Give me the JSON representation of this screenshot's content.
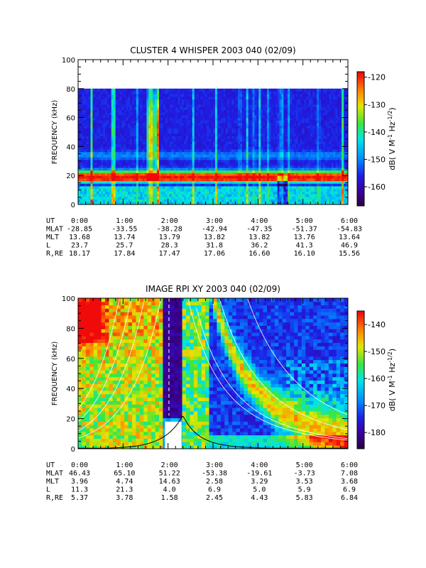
{
  "chart_data": [
    {
      "type": "heatmap",
      "title": "CLUSTER 4 WHISPER 2003 040 (02/09)",
      "ylabel": "FREQUENCY (kHz)",
      "x_ticks": [
        "0:00",
        "1:00",
        "2:00",
        "3:00",
        "4:00",
        "5:00",
        "6:00"
      ],
      "y_ticks": [
        "0",
        "20",
        "40",
        "60",
        "80",
        "100"
      ],
      "xlim_hours": [
        0,
        6
      ],
      "ylim_khz": [
        0,
        100
      ],
      "data_fmax_khz": 80,
      "colorbar": {
        "label": "dB( V M",
        "ticks": [
          "-160",
          "-150",
          "-140",
          "-130",
          "-120"
        ],
        "range": [
          -167,
          -118
        ]
      },
      "ephemeris": {
        "labels": [
          "UT",
          "MLAT",
          "MLT",
          "L",
          "R,RE"
        ],
        "rows": [
          [
            "0:00",
            "1:00",
            "2:00",
            "3:00",
            "4:00",
            "5:00",
            "6:00"
          ],
          [
            "-28.85",
            "-33.55",
            "-38.28",
            "-42.94",
            "-47.35",
            "-51.37",
            "-54.83"
          ],
          [
            "13.68",
            "13.74",
            "13.79",
            "13.82",
            "13.82",
            "13.76",
            "13.64"
          ],
          [
            "23.7",
            "25.7",
            "28.3",
            "31.8",
            "36.2",
            "41.3",
            "46.9"
          ],
          [
            "18.17",
            "17.84",
            "17.47",
            "17.06",
            "16.60",
            "16.10",
            "15.56"
          ]
        ]
      }
    },
    {
      "type": "heatmap",
      "title": "IMAGE RPI XY 2003 040 (02/09)",
      "ylabel": "FREQUENCY (kHz)",
      "x_ticks": [
        "0:00",
        "1:00",
        "2:00",
        "3:00",
        "4:00",
        "5:00",
        "6:00"
      ],
      "y_ticks": [
        "0",
        "20",
        "40",
        "60",
        "80",
        "100"
      ],
      "xlim_hours": [
        0,
        6
      ],
      "ylim_khz": [
        0,
        100
      ],
      "colorbar": {
        "label": "dB( V M",
        "ticks": [
          "-180",
          "-170",
          "-160",
          "-150",
          "-140"
        ],
        "range": [
          -186,
          -135
        ]
      },
      "ephemeris": {
        "labels": [
          "UT",
          "MLAT",
          "MLT",
          "L",
          "R,RE"
        ],
        "rows": [
          [
            "0:00",
            "1:00",
            "2:00",
            "3:00",
            "4:00",
            "5:00",
            "6:00"
          ],
          [
            "46.43",
            "65.10",
            "51.22",
            "-53.38",
            "-19.61",
            "-3.73",
            "7.08"
          ],
          [
            "3.96",
            "4.74",
            "14.63",
            "2.58",
            "3.29",
            "3.53",
            "3.68"
          ],
          [
            "11.3",
            "21.3",
            "4.0",
            "6.9",
            "5.0",
            "5.9",
            "6.9"
          ],
          [
            "5.37",
            "3.78",
            "1.58",
            "2.45",
            "4.43",
            "5.83",
            "6.84"
          ]
        ]
      }
    }
  ]
}
